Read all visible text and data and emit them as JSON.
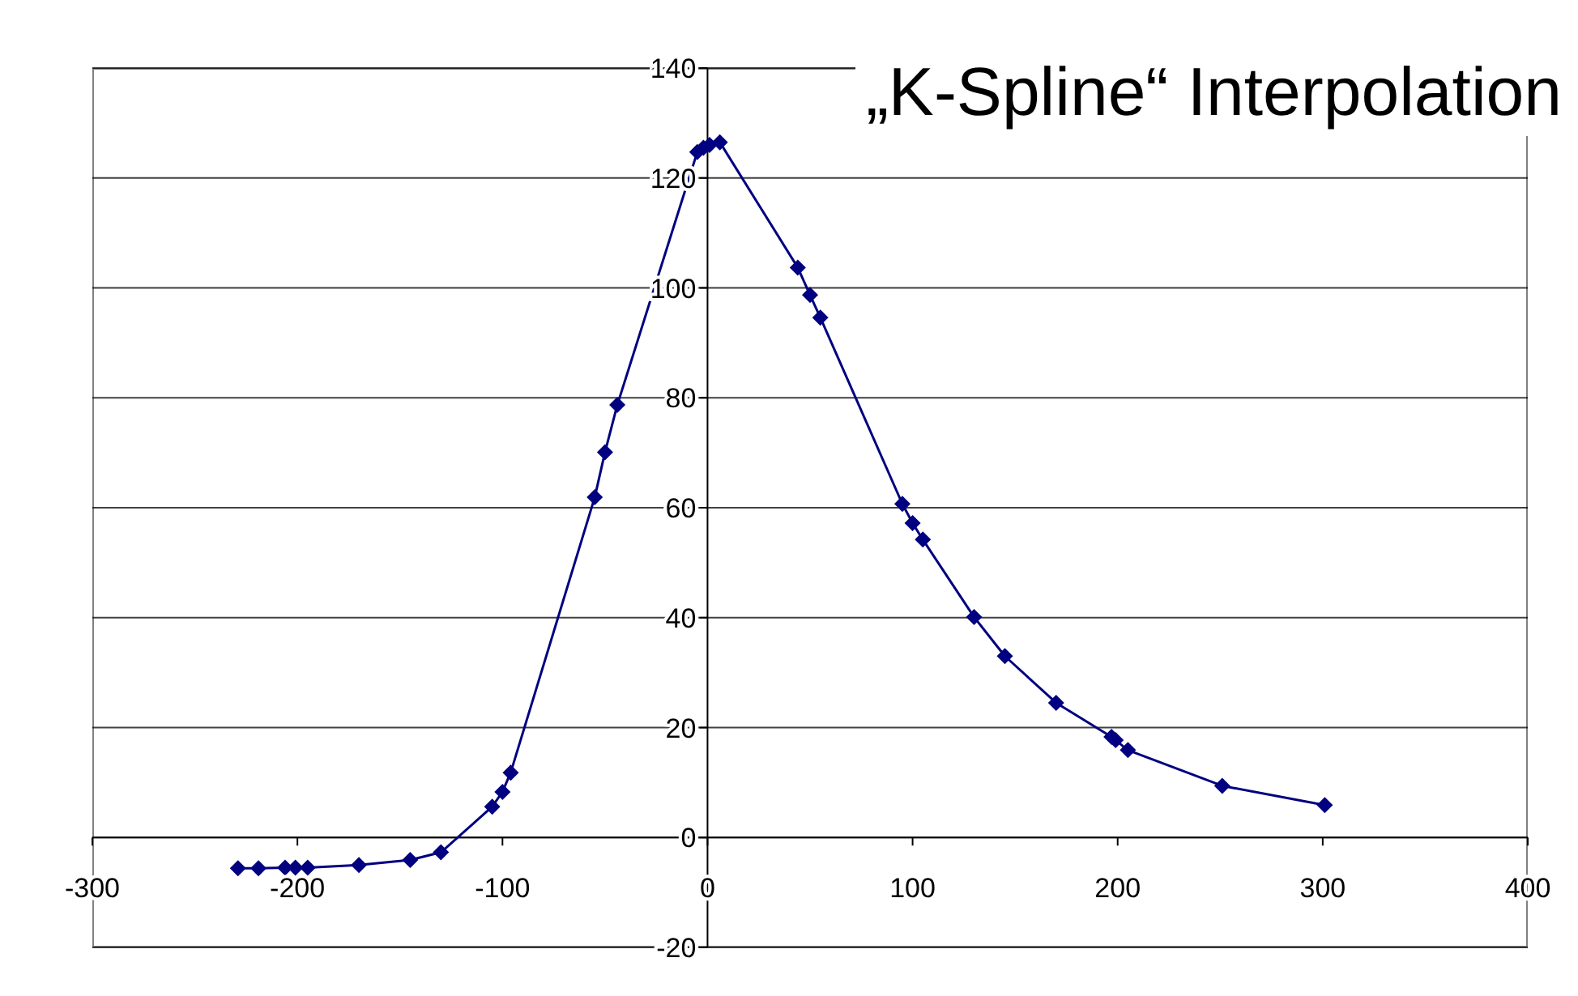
{
  "chart_data": {
    "type": "line",
    "title": "„K-Spline“ Interpolation",
    "x": [
      -229,
      -219,
      -206,
      -201,
      -195,
      -170,
      -145,
      -130,
      -105,
      -100,
      -96,
      -55,
      -50,
      -44,
      -5,
      -2,
      1,
      6,
      44,
      50,
      55,
      95,
      100,
      105,
      130,
      145,
      170,
      197,
      199,
      205,
      251,
      301
    ],
    "series": [
      {
        "color": "#000080",
        "values": [
          -5.6,
          -5.6,
          -5.5,
          -5.5,
          -5.5,
          -5,
          -4.1,
          -2.7,
          5.6,
          8.3,
          11.8,
          61.9,
          70.1,
          78.7,
          124.7,
          125.5,
          126,
          126.5,
          103.7,
          98.7,
          94.6,
          60.7,
          57.2,
          54.2,
          40.1,
          33,
          24.5,
          18.3,
          17.7,
          15.9,
          9.4,
          5.9
        ]
      }
    ],
    "marker": "diamond",
    "line_style": "solid",
    "grid": "y",
    "xlim": [
      -300,
      400
    ],
    "xticks": [
      -300,
      -200,
      -100,
      0,
      100,
      200,
      300,
      400
    ],
    "ylim": [
      -20,
      140
    ],
    "yticks": [
      -20,
      0,
      20,
      40,
      60,
      80,
      100,
      120,
      140
    ]
  }
}
